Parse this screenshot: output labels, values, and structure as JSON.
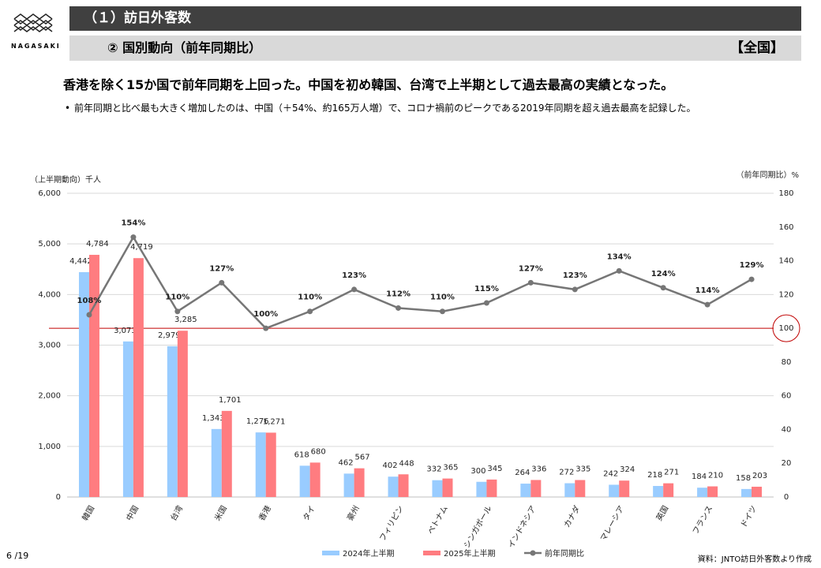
{
  "header": {
    "section": "（１）訪日外客数",
    "subsection": "② 国別動向（前年同期比）",
    "region": "【全国】",
    "logo": "NAGASAKI"
  },
  "headline": "香港を除く15か国で前年同期を上回った。中国を初め韓国、台湾で上半期として過去最高の実績となった。",
  "bullet": "前年同期と比べ最も大きく増加したのは、中国（＋54%、約165万人増）で、コロナ禍前のピークである2019年同期を超え過去最高を記録した。",
  "page": "6 /19",
  "source": "資料：JNTO訪日外客数より作成",
  "chart_data": {
    "type": "bar-line",
    "y_label": "（上半期動向）千人",
    "y2_label": "（前年同期比）%",
    "categories": [
      "韓国",
      "中国",
      "台湾",
      "米国",
      "香港",
      "タイ",
      "豪州",
      "フィリピン",
      "ベトナム",
      "シンガポール",
      "インドネシア",
      "カナダ",
      "マレーシア",
      "英国",
      "フランス",
      "ドイツ"
    ],
    "series": [
      {
        "name": "2024年上半期",
        "color": "#99ccff",
        "kind": "bar",
        "values": [
          4442,
          3073,
          2979,
          1343,
          1276,
          618,
          462,
          402,
          332,
          300,
          264,
          272,
          242,
          218,
          184,
          158
        ],
        "value_labels": [
          "4,442",
          "3,073",
          "2,979",
          "1,343",
          "1,276",
          "618",
          "462",
          "402",
          "332",
          "300",
          "264",
          "272",
          "242",
          "218",
          "184",
          "158"
        ]
      },
      {
        "name": "2025年上半期",
        "color": "#ff7c80",
        "kind": "bar",
        "values": [
          4784,
          4719,
          3285,
          1701,
          1271,
          680,
          567,
          448,
          365,
          345,
          336,
          335,
          324,
          271,
          210,
          203
        ],
        "value_labels": [
          "4,784",
          "4,719",
          "3,285",
          "1,701",
          "1,271",
          "680",
          "567",
          "448",
          "365",
          "345",
          "336",
          "335",
          "324",
          "271",
          "210",
          "203"
        ]
      },
      {
        "name": "前年同期比",
        "color": "#767676",
        "kind": "line",
        "axis": "y2",
        "values": [
          108,
          154,
          110,
          127,
          100,
          110,
          123,
          112,
          110,
          115,
          127,
          123,
          134,
          124,
          114,
          129
        ],
        "value_labels": [
          "108%",
          "154%",
          "110%",
          "127%",
          "100%",
          "110%",
          "123%",
          "112%",
          "110%",
          "115%",
          "127%",
          "123%",
          "134%",
          "124%",
          "114%",
          "129%"
        ]
      }
    ],
    "ylim": [
      0,
      6000
    ],
    "yticks": [
      0,
      {
        "value": 1000,
        "label": "1,000"
      },
      {
        "value": 2000,
        "label": "2,000"
      },
      {
        "value": 3000,
        "label": "3,000"
      },
      {
        "value": 4000,
        "label": "4,000"
      },
      {
        "value": 5000,
        "label": "5,000"
      },
      {
        "value": 6000,
        "label": "6,000"
      }
    ],
    "y2lim": [
      0,
      180
    ],
    "y2ticks": [
      0,
      20,
      40,
      60,
      80,
      100,
      120,
      140,
      160,
      180
    ],
    "reference_line": 100,
    "reference_color": "#c00000",
    "grid": true
  }
}
